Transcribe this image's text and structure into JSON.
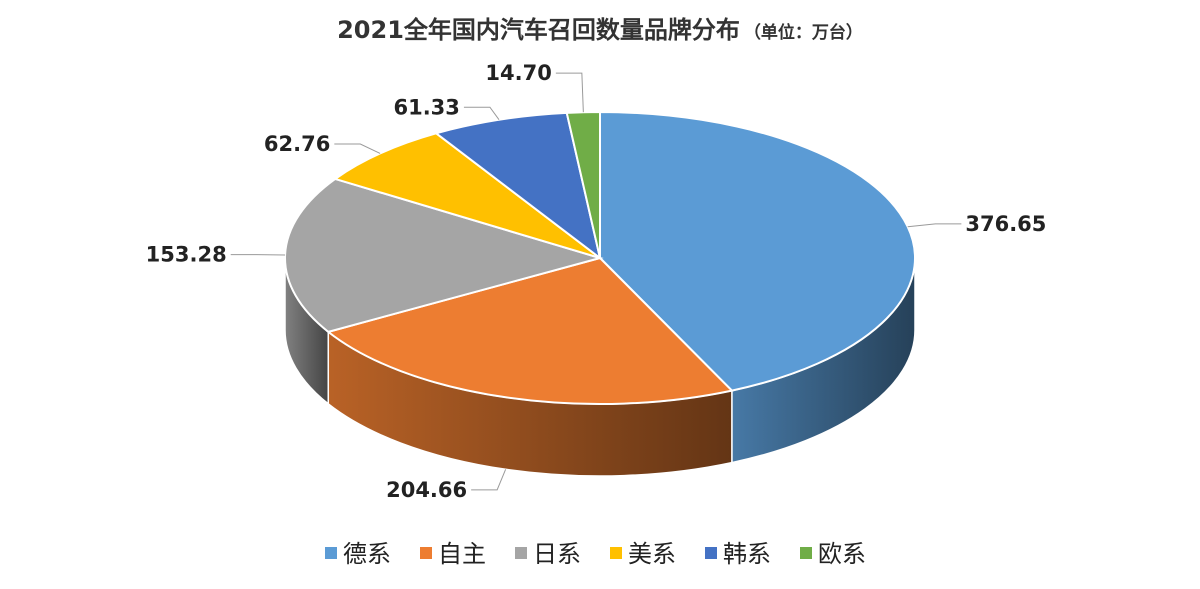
{
  "chart_data": {
    "type": "pie",
    "title": "2021全年国内汽车召回数量品牌分布",
    "subtitle": "（单位：万台）",
    "categories": [
      "德系",
      "自主",
      "日系",
      "美系",
      "韩系",
      "欧系"
    ],
    "values": [
      376.65,
      204.66,
      153.28,
      62.76,
      61.33,
      14.7
    ],
    "value_labels": [
      "376.65",
      "204.66",
      "153.28",
      "62.76",
      "61.33",
      "14.70"
    ],
    "colors": [
      "#5B9BD5",
      "#ED7D31",
      "#A5A5A5",
      "#FFC000",
      "#4472C4",
      "#70AD47"
    ],
    "legend_position": "bottom",
    "style": "3d"
  }
}
